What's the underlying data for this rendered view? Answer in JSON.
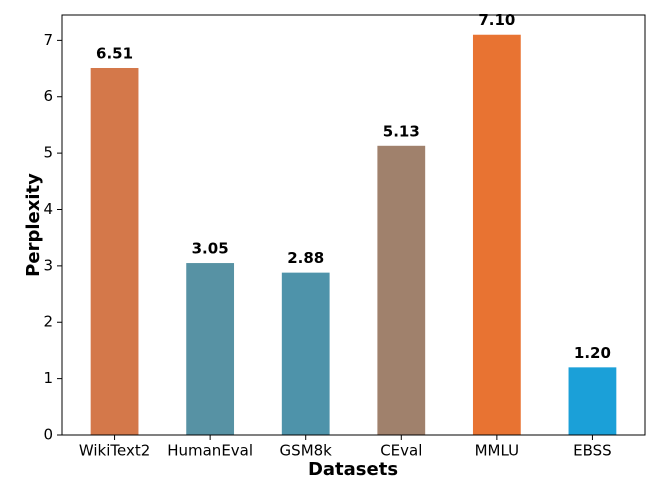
{
  "chart_data": {
    "type": "bar",
    "x_label": "Datasets",
    "y_label": "Perplexity",
    "categories": [
      "WikiText2",
      "HumanEval",
      "GSM8k",
      "CEval",
      "MMLU",
      "EBSS"
    ],
    "values": [
      6.51,
      3.05,
      2.88,
      5.13,
      7.1,
      1.2
    ],
    "value_labels": [
      "6.51",
      "3.05",
      "2.88",
      "5.13",
      "7.10",
      "1.20"
    ],
    "colors": [
      "#d4784a",
      "#5792a4",
      "#4e93aa",
      "#a0816c",
      "#e87332",
      "#1ba0d8"
    ],
    "ylim": [
      0,
      7.45
    ],
    "yticks": [
      0,
      1,
      2,
      3,
      4,
      5,
      6,
      7
    ],
    "grid": false
  }
}
